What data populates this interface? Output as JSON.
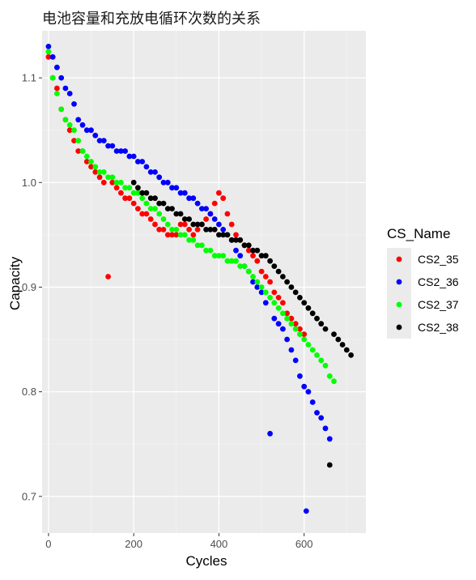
{
  "chart_data": {
    "type": "scatter",
    "title": "电池容量和充放电循环次数的关系",
    "xlabel": "Cycles",
    "ylabel": "Capacity",
    "xlim": [
      -15,
      745
    ],
    "ylim": [
      0.665,
      1.145
    ],
    "xticks": [
      0,
      200,
      400,
      600
    ],
    "yticks": [
      0.7,
      0.8,
      0.9,
      1.0,
      1.1
    ],
    "ytick_labels": [
      "0.7",
      "0.8",
      "0.9",
      "1.0",
      "1.1"
    ],
    "grid": true,
    "panel_background": "#ebebeb",
    "legend": {
      "title": "CS_Name",
      "position": "right"
    },
    "series": [
      {
        "name": "CS2_35",
        "color": "#ff0000",
        "points": [
          [
            0,
            1.12
          ],
          [
            10,
            1.1
          ],
          [
            20,
            1.09
          ],
          [
            30,
            1.07
          ],
          [
            40,
            1.06
          ],
          [
            50,
            1.05
          ],
          [
            60,
            1.04
          ],
          [
            70,
            1.03
          ],
          [
            80,
            1.03
          ],
          [
            90,
            1.02
          ],
          [
            100,
            1.015
          ],
          [
            110,
            1.01
          ],
          [
            120,
            1.005
          ],
          [
            130,
            1.0
          ],
          [
            140,
            0.91
          ],
          [
            150,
            1.0
          ],
          [
            160,
            0.995
          ],
          [
            170,
            0.99
          ],
          [
            180,
            0.985
          ],
          [
            190,
            0.985
          ],
          [
            200,
            0.98
          ],
          [
            210,
            0.975
          ],
          [
            220,
            0.97
          ],
          [
            230,
            0.97
          ],
          [
            240,
            0.965
          ],
          [
            250,
            0.96
          ],
          [
            260,
            0.955
          ],
          [
            270,
            0.955
          ],
          [
            280,
            0.95
          ],
          [
            290,
            0.95
          ],
          [
            300,
            0.95
          ],
          [
            310,
            0.96
          ],
          [
            320,
            0.96
          ],
          [
            330,
            0.955
          ],
          [
            340,
            0.95
          ],
          [
            350,
            0.955
          ],
          [
            360,
            0.96
          ],
          [
            370,
            0.965
          ],
          [
            380,
            0.97
          ],
          [
            390,
            0.98
          ],
          [
            400,
            0.99
          ],
          [
            410,
            0.985
          ],
          [
            420,
            0.97
          ],
          [
            430,
            0.96
          ],
          [
            440,
            0.95
          ],
          [
            450,
            0.945
          ],
          [
            460,
            0.94
          ],
          [
            470,
            0.935
          ],
          [
            480,
            0.93
          ],
          [
            490,
            0.925
          ],
          [
            500,
            0.915
          ],
          [
            510,
            0.91
          ],
          [
            520,
            0.905
          ],
          [
            530,
            0.895
          ],
          [
            540,
            0.89
          ],
          [
            550,
            0.885
          ],
          [
            560,
            0.875
          ],
          [
            570,
            0.87
          ],
          [
            580,
            0.865
          ],
          [
            590,
            0.86
          ],
          [
            600,
            0.855
          ]
        ]
      },
      {
        "name": "CS2_36",
        "color": "#0000ff",
        "points": [
          [
            0,
            1.13
          ],
          [
            10,
            1.12
          ],
          [
            20,
            1.11
          ],
          [
            30,
            1.1
          ],
          [
            40,
            1.09
          ],
          [
            50,
            1.085
          ],
          [
            60,
            1.075
          ],
          [
            70,
            1.06
          ],
          [
            80,
            1.055
          ],
          [
            90,
            1.05
          ],
          [
            100,
            1.05
          ],
          [
            110,
            1.045
          ],
          [
            120,
            1.04
          ],
          [
            130,
            1.04
          ],
          [
            140,
            1.035
          ],
          [
            150,
            1.035
          ],
          [
            160,
            1.03
          ],
          [
            170,
            1.03
          ],
          [
            180,
            1.03
          ],
          [
            190,
            1.025
          ],
          [
            200,
            1.025
          ],
          [
            210,
            1.02
          ],
          [
            220,
            1.02
          ],
          [
            230,
            1.015
          ],
          [
            240,
            1.01
          ],
          [
            250,
            1.01
          ],
          [
            260,
            1.005
          ],
          [
            270,
            1.0
          ],
          [
            280,
            1.0
          ],
          [
            290,
            0.995
          ],
          [
            300,
            0.995
          ],
          [
            310,
            0.99
          ],
          [
            320,
            0.99
          ],
          [
            330,
            0.985
          ],
          [
            340,
            0.985
          ],
          [
            350,
            0.98
          ],
          [
            360,
            0.975
          ],
          [
            370,
            0.975
          ],
          [
            380,
            0.97
          ],
          [
            390,
            0.965
          ],
          [
            400,
            0.96
          ],
          [
            410,
            0.955
          ],
          [
            420,
            0.95
          ],
          [
            430,
            0.945
          ],
          [
            440,
            0.935
          ],
          [
            450,
            0.93
          ],
          [
            460,
            0.92
          ],
          [
            470,
            0.915
          ],
          [
            480,
            0.905
          ],
          [
            490,
            0.9
          ],
          [
            500,
            0.895
          ],
          [
            510,
            0.885
          ],
          [
            520,
            0.76
          ],
          [
            530,
            0.87
          ],
          [
            540,
            0.865
          ],
          [
            550,
            0.86
          ],
          [
            560,
            0.85
          ],
          [
            570,
            0.84
          ],
          [
            580,
            0.83
          ],
          [
            590,
            0.815
          ],
          [
            600,
            0.805
          ],
          [
            605,
            0.686
          ],
          [
            610,
            0.8
          ],
          [
            620,
            0.79
          ],
          [
            630,
            0.78
          ],
          [
            640,
            0.775
          ],
          [
            650,
            0.765
          ],
          [
            660,
            0.755
          ]
        ]
      },
      {
        "name": "CS2_37",
        "color": "#00ff00",
        "points": [
          [
            0,
            1.125
          ],
          [
            10,
            1.1
          ],
          [
            20,
            1.085
          ],
          [
            30,
            1.07
          ],
          [
            40,
            1.06
          ],
          [
            50,
            1.055
          ],
          [
            60,
            1.05
          ],
          [
            70,
            1.04
          ],
          [
            80,
            1.03
          ],
          [
            90,
            1.025
          ],
          [
            100,
            1.02
          ],
          [
            110,
            1.015
          ],
          [
            120,
            1.01
          ],
          [
            130,
            1.01
          ],
          [
            140,
            1.005
          ],
          [
            150,
            1.005
          ],
          [
            160,
            1.0
          ],
          [
            170,
            1.0
          ],
          [
            180,
            0.995
          ],
          [
            190,
            0.995
          ],
          [
            200,
            0.99
          ],
          [
            210,
            0.99
          ],
          [
            220,
            0.985
          ],
          [
            230,
            0.98
          ],
          [
            240,
            0.975
          ],
          [
            250,
            0.975
          ],
          [
            260,
            0.97
          ],
          [
            270,
            0.965
          ],
          [
            280,
            0.96
          ],
          [
            290,
            0.955
          ],
          [
            300,
            0.955
          ],
          [
            310,
            0.95
          ],
          [
            320,
            0.95
          ],
          [
            330,
            0.945
          ],
          [
            340,
            0.945
          ],
          [
            350,
            0.94
          ],
          [
            360,
            0.94
          ],
          [
            370,
            0.935
          ],
          [
            380,
            0.935
          ],
          [
            390,
            0.93
          ],
          [
            400,
            0.93
          ],
          [
            410,
            0.93
          ],
          [
            420,
            0.925
          ],
          [
            430,
            0.925
          ],
          [
            440,
            0.925
          ],
          [
            450,
            0.92
          ],
          [
            460,
            0.92
          ],
          [
            470,
            0.915
          ],
          [
            480,
            0.91
          ],
          [
            490,
            0.905
          ],
          [
            500,
            0.9
          ],
          [
            510,
            0.895
          ],
          [
            520,
            0.89
          ],
          [
            530,
            0.885
          ],
          [
            540,
            0.88
          ],
          [
            550,
            0.875
          ],
          [
            560,
            0.87
          ],
          [
            570,
            0.865
          ],
          [
            580,
            0.86
          ],
          [
            590,
            0.855
          ],
          [
            600,
            0.85
          ],
          [
            610,
            0.845
          ],
          [
            620,
            0.84
          ],
          [
            630,
            0.835
          ],
          [
            640,
            0.83
          ],
          [
            650,
            0.825
          ],
          [
            660,
            0.815
          ],
          [
            670,
            0.81
          ]
        ]
      },
      {
        "name": "CS2_38",
        "color": "#000000",
        "points": [
          [
            200,
            1.0
          ],
          [
            210,
            0.995
          ],
          [
            220,
            0.99
          ],
          [
            230,
            0.99
          ],
          [
            240,
            0.985
          ],
          [
            250,
            0.985
          ],
          [
            260,
            0.98
          ],
          [
            270,
            0.98
          ],
          [
            280,
            0.975
          ],
          [
            290,
            0.975
          ],
          [
            300,
            0.97
          ],
          [
            310,
            0.97
          ],
          [
            320,
            0.965
          ],
          [
            330,
            0.965
          ],
          [
            340,
            0.96
          ],
          [
            350,
            0.96
          ],
          [
            360,
            0.96
          ],
          [
            370,
            0.955
          ],
          [
            380,
            0.955
          ],
          [
            390,
            0.955
          ],
          [
            400,
            0.95
          ],
          [
            410,
            0.95
          ],
          [
            420,
            0.95
          ],
          [
            430,
            0.945
          ],
          [
            440,
            0.945
          ],
          [
            450,
            0.945
          ],
          [
            460,
            0.94
          ],
          [
            470,
            0.94
          ],
          [
            480,
            0.935
          ],
          [
            490,
            0.935
          ],
          [
            500,
            0.93
          ],
          [
            510,
            0.93
          ],
          [
            520,
            0.925
          ],
          [
            530,
            0.92
          ],
          [
            540,
            0.915
          ],
          [
            550,
            0.91
          ],
          [
            560,
            0.905
          ],
          [
            570,
            0.9
          ],
          [
            580,
            0.895
          ],
          [
            590,
            0.89
          ],
          [
            600,
            0.885
          ],
          [
            610,
            0.88
          ],
          [
            620,
            0.875
          ],
          [
            630,
            0.87
          ],
          [
            640,
            0.865
          ],
          [
            650,
            0.86
          ],
          [
            660,
            0.73
          ],
          [
            670,
            0.855
          ],
          [
            680,
            0.85
          ],
          [
            690,
            0.845
          ],
          [
            700,
            0.84
          ],
          [
            710,
            0.835
          ]
        ]
      }
    ]
  }
}
